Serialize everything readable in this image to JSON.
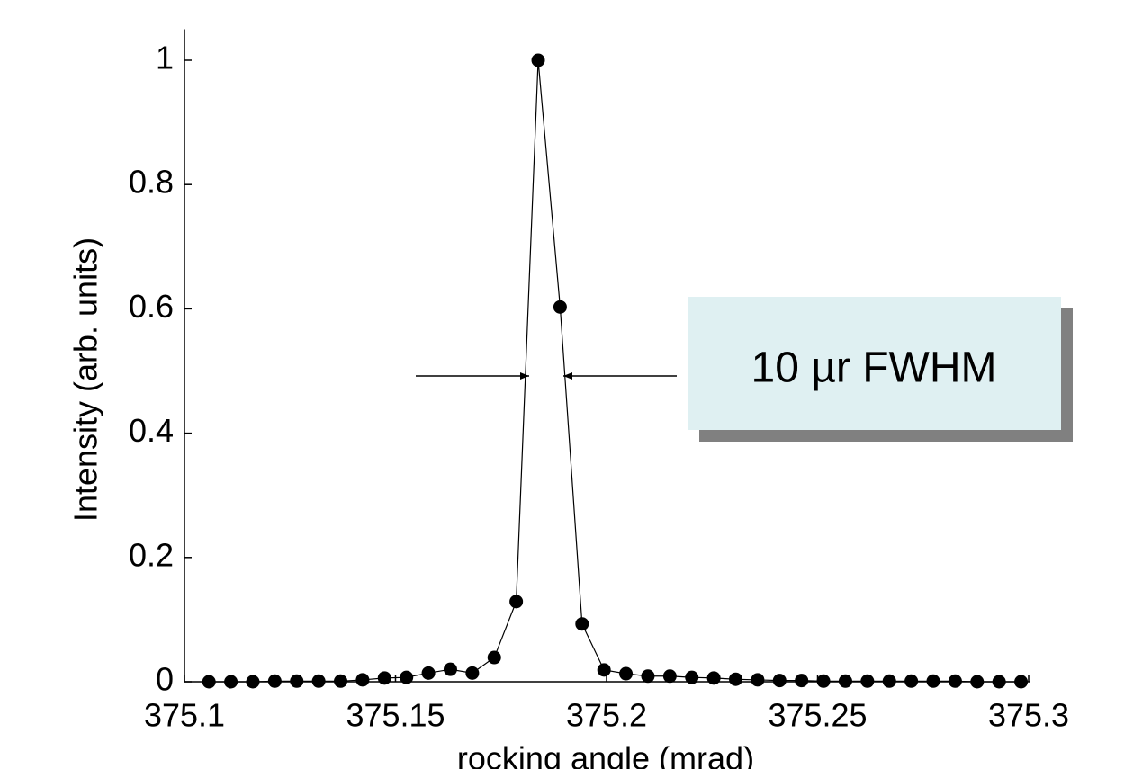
{
  "chart_data": {
    "type": "line",
    "x_label": "rocking angle (mrad)",
    "y_label": "Intensity (arb. units)",
    "annotation": "10 µr FWHM",
    "x": [
      375.1058,
      375.111,
      375.1162,
      375.1214,
      375.1266,
      375.1318,
      375.137,
      375.1422,
      375.1474,
      375.1526,
      375.1578,
      375.163,
      375.1682,
      375.1734,
      375.1786,
      375.1838,
      375.189,
      375.1942,
      375.1994,
      375.2046,
      375.2098,
      375.215,
      375.2202,
      375.2254,
      375.2306,
      375.2358,
      375.241,
      375.2462,
      375.2514,
      375.2566,
      375.2618,
      375.267,
      375.2722,
      375.2774,
      375.2826,
      375.2878,
      375.293,
      375.2982
    ],
    "series": [
      {
        "name": "intensity",
        "color": "#000000",
        "values": [
          0,
          0,
          0,
          0.001,
          0.001,
          0.001,
          0.001,
          0.003,
          0.006,
          0.007,
          0.014,
          0.02,
          0.014,
          0.039,
          0.129,
          1.0,
          0.603,
          0.093,
          0.019,
          0.013,
          0.009,
          0.009,
          0.007,
          0.006,
          0.004,
          0.003,
          0.002,
          0.002,
          0.001,
          0.001,
          0.001,
          0.001,
          0.001,
          0.001,
          0.001,
          0,
          0,
          0
        ]
      }
    ],
    "xlim": [
      375.1,
      375.3
    ],
    "xticks": [
      375.1,
      375.15,
      375.2,
      375.25,
      375.3
    ],
    "ylim": [
      0,
      1.05
    ],
    "yticks": [
      0,
      0.2,
      0.4,
      0.6,
      0.8,
      1
    ]
  }
}
